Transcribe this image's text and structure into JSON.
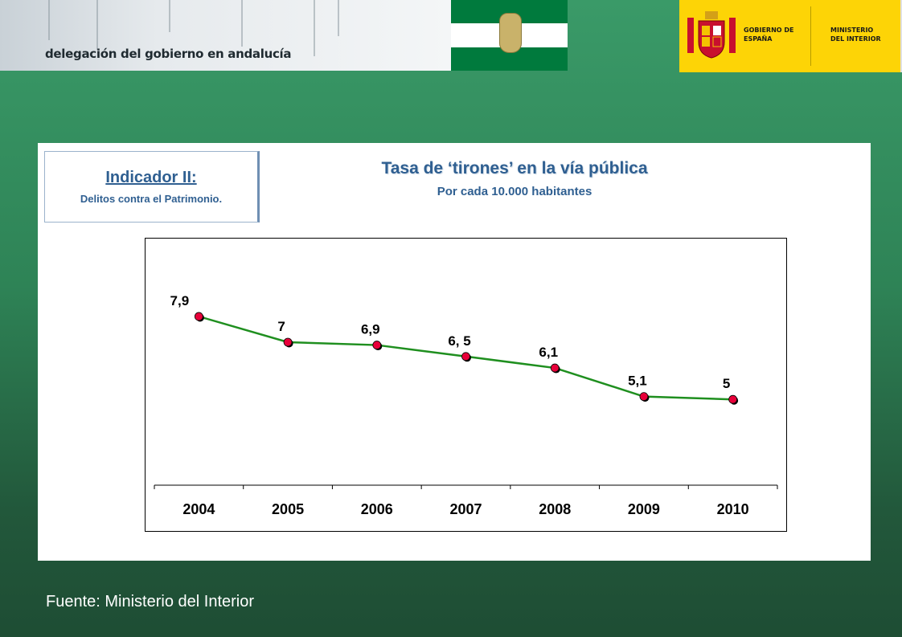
{
  "header": {
    "org_title": "delegación del gobierno en andalucía",
    "gov_label": "GOBIERNO DE ESPAÑA",
    "ministry_label": "MINISTERIO DEL INTERIOR",
    "flag_colors": [
      "#007a3d",
      "#ffffff",
      "#007a3d"
    ],
    "gov_bg_color": "#fdd406"
  },
  "indicator": {
    "title": "Indicador II:",
    "subtitle": "Delitos contra el Patrimonio."
  },
  "chart_data": {
    "type": "line",
    "title": "Tasa de ‘tirones’ en la vía pública",
    "subtitle": "Por cada 10.000 habitantes",
    "categories": [
      "2004",
      "2005",
      "2006",
      "2007",
      "2008",
      "2009",
      "2010"
    ],
    "values": [
      7.9,
      7.0,
      6.9,
      6.5,
      6.1,
      5.1,
      5.0
    ],
    "data_labels": [
      "7,9",
      "7",
      "6,9",
      "6, 5",
      "6,1",
      "5,1",
      "5"
    ],
    "line_color": "#1f8f1f",
    "marker_color": "#e8003a",
    "ylim": [
      2,
      9.5
    ],
    "grid": false
  },
  "footer": {
    "source": "Fuente: Ministerio del Interior"
  }
}
